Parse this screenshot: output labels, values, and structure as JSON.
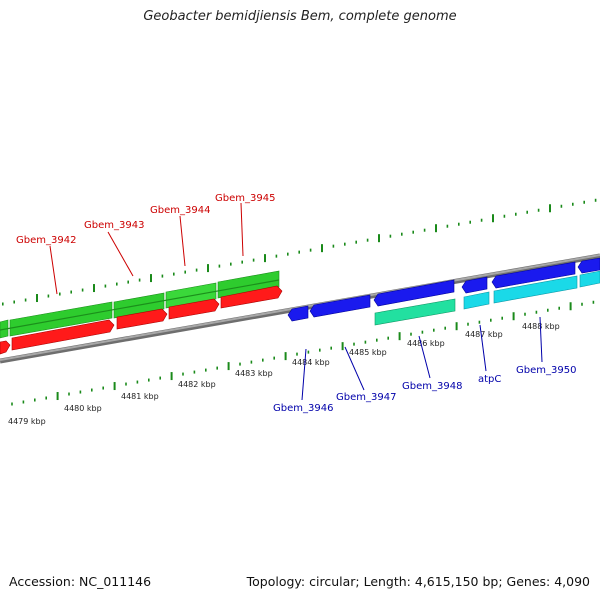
{
  "title": "Geobacter bemidjiensis Bem, complete genome",
  "footer": {
    "accession": "Accession: NC_011146",
    "stats": "Topology: circular; Length: 4,615,150 bp; Genes: 4,090"
  },
  "colors": {
    "forward_gene": "#2ecc2e",
    "forward_cds": "#ff1a1a",
    "reverse_gene": "#1a1aee",
    "reverse_cds": "#1ad9e8",
    "reverse_alt": "#22e0a0",
    "backbone": "#8a8a8a",
    "tick": "#1a8a1a",
    "label_forward": "#cc0000",
    "label_reverse": "#0000aa"
  },
  "ticks": [
    {
      "label": "4479 kbp"
    },
    {
      "label": "4480 kbp"
    },
    {
      "label": "4481 kbp"
    },
    {
      "label": "4482 kbp"
    },
    {
      "label": "4483 kbp"
    },
    {
      "label": "4484 kbp"
    },
    {
      "label": "4485 kbp"
    },
    {
      "label": "4486 kbp"
    },
    {
      "label": "4487 kbp"
    },
    {
      "label": "4488 kbp"
    }
  ],
  "forward_labels": [
    "Gbem_3942",
    "Gbem_3943",
    "Gbem_3944",
    "Gbem_3945"
  ],
  "reverse_labels": [
    "Gbem_3946",
    "Gbem_3947",
    "Gbem_3948",
    "atpC",
    "Gbem_3950"
  ]
}
